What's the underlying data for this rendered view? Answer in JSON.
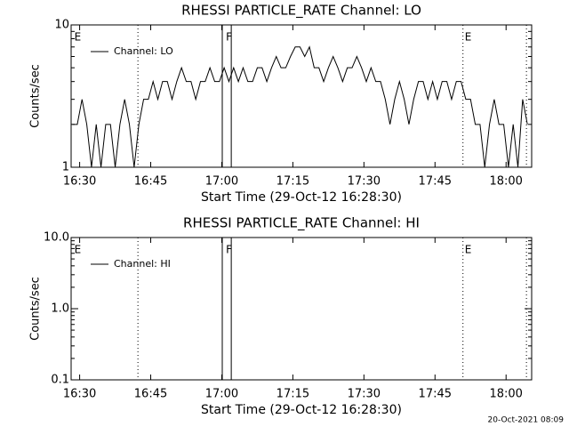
{
  "chart_data": [
    {
      "type": "line",
      "title": "RHESSI PARTICLE_RATE Channel: LO",
      "xlabel": "Start Time (29-Oct-12 16:28:30)",
      "ylabel": "Counts/sec",
      "xlim": [
        28.2,
        125.4
      ],
      "xticks": [
        {
          "value": 30,
          "label": "16:30"
        },
        {
          "value": 45,
          "label": "16:45"
        },
        {
          "value": 60,
          "label": "17:00"
        },
        {
          "value": 75,
          "label": "17:15"
        },
        {
          "value": 90,
          "label": "17:30"
        },
        {
          "value": 105,
          "label": "17:45"
        },
        {
          "value": 120,
          "label": "18:00"
        }
      ],
      "ylim": [
        1,
        10
      ],
      "yticks": [
        1,
        10
      ],
      "ylog": true,
      "legend": "upper left",
      "x": [
        28.5,
        29.5,
        30.5,
        31.5,
        32.5,
        33.5,
        34.5,
        35.5,
        36.5,
        37.5,
        38.5,
        39.5,
        40.5,
        41.5,
        42.5,
        43.5,
        44.5,
        45.5,
        46.5,
        47.5,
        48.5,
        49.5,
        50.5,
        51.5,
        52.5,
        53.5,
        54.5,
        55.5,
        56.5,
        57.5,
        58.5,
        59.5,
        60.5,
        61.5,
        62.5,
        63.5,
        64.5,
        65.5,
        66.5,
        67.5,
        68.5,
        69.5,
        70.5,
        71.5,
        72.5,
        73.5,
        74.5,
        75.5,
        76.5,
        77.5,
        78.5,
        79.5,
        80.5,
        81.5,
        82.5,
        83.5,
        84.5,
        85.5,
        86.5,
        87.5,
        88.5,
        89.5,
        90.5,
        91.5,
        92.5,
        93.5,
        94.5,
        95.5,
        96.5,
        97.5,
        98.5,
        99.5,
        100.5,
        101.5,
        102.5,
        103.5,
        104.5,
        105.5,
        106.5,
        107.5,
        108.5,
        109.5,
        110.5,
        111.5,
        112.5,
        113.5,
        114.5,
        115.5,
        116.5,
        117.5,
        118.5,
        119.5,
        120.5,
        121.5,
        122.5,
        123.5,
        124.5
      ],
      "series": [
        {
          "name": "Channel: LO",
          "color": "#000000",
          "values": [
            2,
            2,
            3,
            2,
            1,
            2,
            1,
            2,
            2,
            1,
            2,
            3,
            2,
            1,
            2,
            3,
            3,
            4,
            3,
            4,
            4,
            3,
            4,
            5,
            4,
            4,
            3,
            4,
            4,
            5,
            4,
            4,
            5,
            4,
            5,
            4,
            5,
            4,
            4,
            5,
            5,
            4,
            5,
            6,
            5,
            5,
            6,
            7,
            7,
            6,
            7,
            5,
            5,
            4,
            5,
            6,
            5,
            4,
            5,
            5,
            6,
            5,
            4,
            5,
            4,
            4,
            3,
            2,
            3,
            4,
            3,
            2,
            3,
            4,
            4,
            3,
            4,
            3,
            4,
            4,
            3,
            4,
            4,
            3,
            3,
            2,
            2,
            1,
            2,
            3,
            2,
            2,
            1,
            2,
            1,
            3,
            2
          ]
        }
      ],
      "vlines": [
        {
          "x": 42.3,
          "style": "dotted"
        },
        {
          "x": 60.1,
          "style": "solid"
        },
        {
          "x": 62.0,
          "style": "solid"
        },
        {
          "x": 110.9,
          "style": "dotted"
        },
        {
          "x": 124.3,
          "style": "dotted"
        }
      ],
      "annotations": [
        {
          "x": 28.5,
          "text": "E"
        },
        {
          "x": 60.5,
          "text": "F"
        },
        {
          "x": 110.9,
          "text": "E"
        }
      ]
    },
    {
      "type": "line",
      "title": "RHESSI PARTICLE_RATE Channel: HI",
      "xlabel": "Start Time (29-Oct-12 16:28:30)",
      "ylabel": "Counts/sec",
      "xlim": [
        28.2,
        125.4
      ],
      "xticks": [
        {
          "value": 30,
          "label": "16:30"
        },
        {
          "value": 45,
          "label": "16:45"
        },
        {
          "value": 60,
          "label": "17:00"
        },
        {
          "value": 75,
          "label": "17:15"
        },
        {
          "value": 90,
          "label": "17:30"
        },
        {
          "value": 105,
          "label": "17:45"
        },
        {
          "value": 120,
          "label": "18:00"
        }
      ],
      "ylim": [
        0.1,
        10
      ],
      "yticks": [
        0.1,
        {
          "value": 1,
          "label": "1.0"
        },
        {
          "value": 10,
          "label": "10.0"
        }
      ],
      "ylog": true,
      "legend": "upper left",
      "x": [],
      "series": [
        {
          "name": "Channel: HI",
          "color": "#000000",
          "values": []
        }
      ],
      "vlines": [
        {
          "x": 42.3,
          "style": "dotted"
        },
        {
          "x": 60.1,
          "style": "solid"
        },
        {
          "x": 62.0,
          "style": "solid"
        },
        {
          "x": 110.9,
          "style": "dotted"
        },
        {
          "x": 124.3,
          "style": "dotted"
        }
      ],
      "annotations": [
        {
          "x": 28.5,
          "text": "E"
        },
        {
          "x": 60.5,
          "text": "F"
        },
        {
          "x": 110.9,
          "text": "E"
        }
      ]
    }
  ],
  "footer": "20-Oct-2021 08:09"
}
